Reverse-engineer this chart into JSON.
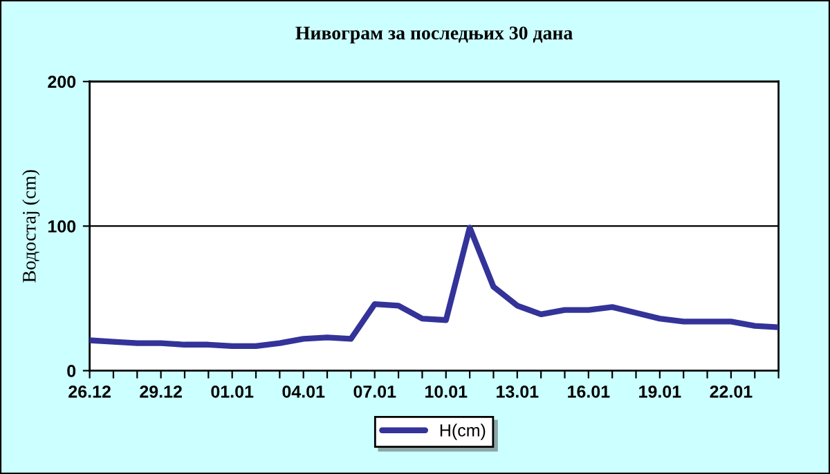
{
  "chart_data": {
    "type": "line",
    "title": "Нивограм за последњих 30 дана",
    "ylabel": "Водостај (cm)",
    "categories": [
      "26.12",
      null,
      null,
      "29.12",
      null,
      null,
      "01.01",
      null,
      null,
      "04.01",
      null,
      null,
      "07.01",
      null,
      null,
      "10.01",
      null,
      null,
      "13.01",
      null,
      null,
      "16.01",
      null,
      null,
      "19.01",
      null,
      null,
      "22.01",
      null,
      null
    ],
    "series": [
      {
        "name": "H(cm)",
        "color": "#333399",
        "values": [
          21,
          20,
          19,
          19,
          18,
          18,
          17,
          17,
          19,
          22,
          23,
          22,
          46,
          45,
          36,
          35,
          99,
          58,
          45,
          39,
          42,
          42,
          44,
          40,
          36,
          34,
          34,
          34,
          31,
          30
        ]
      }
    ],
    "ylim": [
      0,
      200
    ],
    "yticks": [
      0,
      100,
      200
    ],
    "grid": "y",
    "legend": "bottom",
    "marker": "none",
    "line_style": "solid"
  }
}
